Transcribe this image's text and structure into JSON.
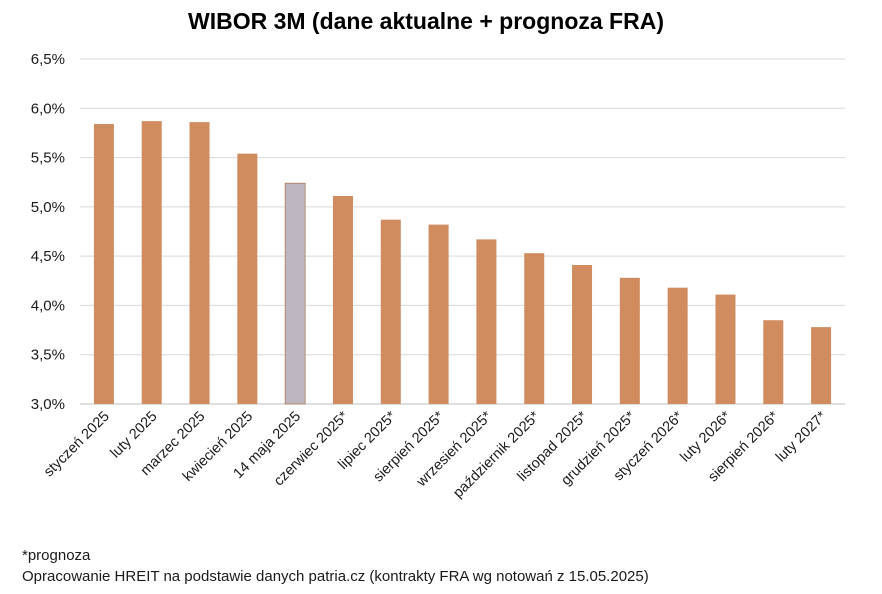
{
  "chart_data": {
    "type": "bar",
    "title": "WIBOR 3M (dane aktualne + prognoza FRA)",
    "xlabel": "",
    "ylabel": "",
    "ylim": [
      3.0,
      6.5
    ],
    "yticks": [
      "3,0%",
      "3,5%",
      "4,0%",
      "4,5%",
      "5,0%",
      "5,5%",
      "6,0%",
      "6,5%"
    ],
    "grid": true,
    "categories": [
      "styczeń 2025",
      "luty 2025",
      "marzec 2025",
      "kwiecień 2025",
      "14 maja 2025",
      "czerwiec 2025*",
      "lipiec 2025*",
      "sierpień 2025*",
      "wrzesień 2025*",
      "październik 2025*",
      "listopad 2025*",
      "grudzień 2025*",
      "styczeń 2026*",
      "luty 2026*",
      "sierpień 2026*",
      "luty 2027*"
    ],
    "values": [
      5.84,
      5.87,
      5.86,
      5.54,
      5.24,
      5.11,
      4.87,
      4.82,
      4.67,
      4.53,
      4.41,
      4.28,
      4.18,
      4.11,
      3.85,
      3.78
    ],
    "colors": {
      "bar": "#d08c5f",
      "highlight": "#bdb5bf",
      "grid": "#d9d9d9",
      "axis": "#bfbfbf"
    },
    "highlight_index": 4
  },
  "footnotes": {
    "forecast_note": "*prognoza",
    "source": "Opracowanie HREIT na podstawie danych patria.cz (kontrakty FRA wg notowań z 15.05.2025)"
  }
}
